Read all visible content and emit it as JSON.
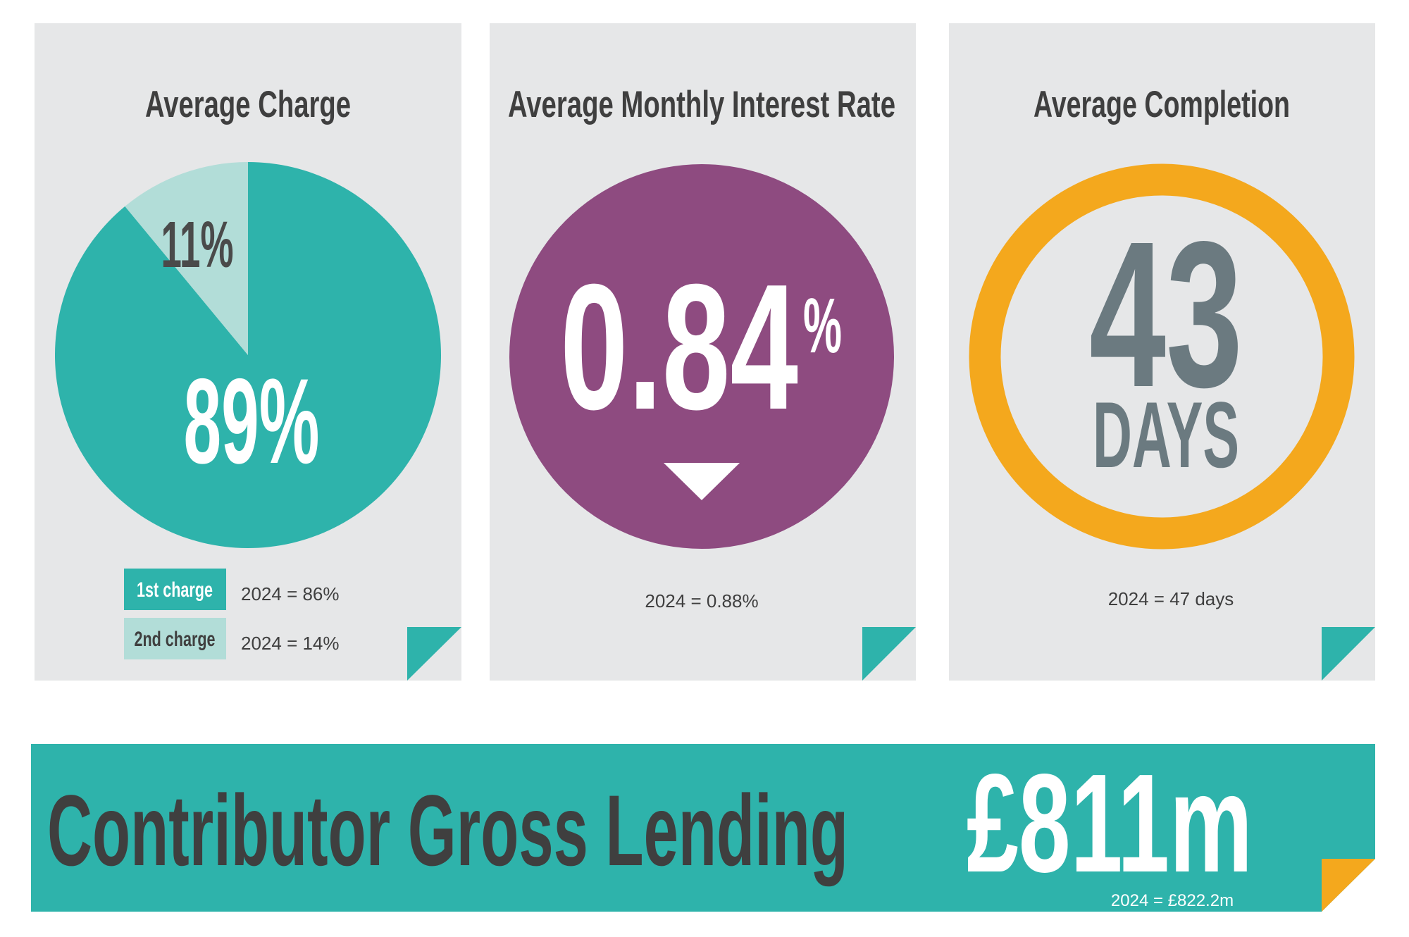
{
  "chart_data": {
    "type": "pie",
    "title": "Average Charge",
    "categories": [
      "1st charge",
      "2nd charge"
    ],
    "values": [
      89,
      11
    ],
    "value_labels": [
      "89%",
      "11%"
    ],
    "colors": [
      "#2eb3ab",
      "#b2ddd8"
    ],
    "previous": [
      "2024 = 86%",
      "2024 = 14%"
    ]
  },
  "cards": [
    {
      "title": "Average Monthly Interest Rate",
      "value": "0.84",
      "unit": "%",
      "note": "2024 = 0.88%"
    },
    {
      "title": "Average Completion",
      "value": "43",
      "unit": "DAYS",
      "note": "2024 = 47 days"
    }
  ],
  "banner": {
    "title": "Contributor Gross Lending",
    "value": "£811m",
    "note": "2024 = £822.2m"
  }
}
